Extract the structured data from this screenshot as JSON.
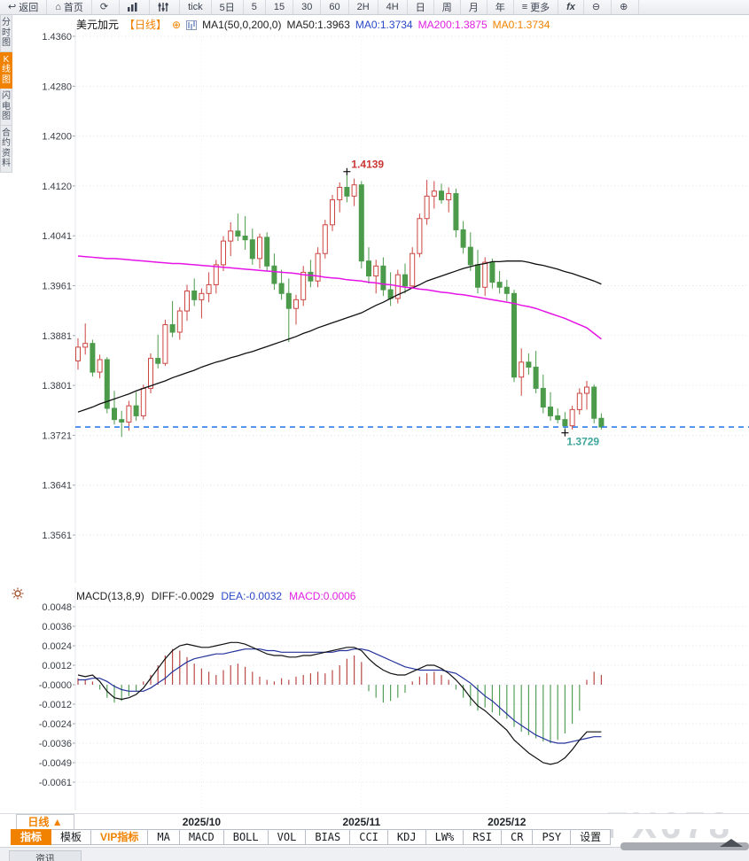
{
  "toolbar": {
    "items": [
      {
        "id": "back",
        "label": "返回",
        "icon": "back-arrow-icon",
        "glyph": "↩"
      },
      {
        "id": "home",
        "label": "首页",
        "icon": "home-icon",
        "glyph": "⌂"
      },
      {
        "id": "refresh",
        "label": "",
        "icon": "refresh-icon",
        "glyph": "⟳"
      },
      {
        "id": "chart-type",
        "label": "",
        "icon": "bar-chart-icon",
        "glyph": "svg-bars"
      },
      {
        "id": "settings",
        "label": "",
        "icon": "sliders-icon",
        "glyph": "svg-sliders"
      },
      {
        "id": "tick",
        "label": "tick"
      },
      {
        "id": "5d",
        "label": "5日"
      },
      {
        "id": "m5",
        "label": "5"
      },
      {
        "id": "m15",
        "label": "15"
      },
      {
        "id": "m30",
        "label": "30"
      },
      {
        "id": "m60",
        "label": "60"
      },
      {
        "id": "h2",
        "label": "2H"
      },
      {
        "id": "h4",
        "label": "4H"
      },
      {
        "id": "day",
        "label": "日"
      },
      {
        "id": "week",
        "label": "周"
      },
      {
        "id": "month",
        "label": "月"
      },
      {
        "id": "year",
        "label": "年"
      },
      {
        "id": "more",
        "label": "更多",
        "icon": "menu-icon",
        "glyph": "≡"
      },
      {
        "id": "fx",
        "label": "fx"
      },
      {
        "id": "zoom-out",
        "label": "",
        "icon": "zoom-out-icon",
        "glyph": "⊖"
      },
      {
        "id": "zoom-in",
        "label": "",
        "icon": "zoom-in-icon",
        "glyph": "⊕"
      }
    ]
  },
  "sidebar": {
    "tabs": [
      {
        "label": "分时图",
        "selected": false
      },
      {
        "label": "K线图",
        "selected": true
      },
      {
        "label": "闪电图",
        "selected": false
      },
      {
        "label": "合约资料",
        "selected": false
      }
    ]
  },
  "legend": {
    "symbol": "美元加元",
    "period": "【日线】",
    "add_glyph": "⊕",
    "ma_settings": "MA1(50,0,200,0)",
    "items": [
      {
        "text": "MA50:1.3963",
        "color": "#222222"
      },
      {
        "text": "MA0:1.3734",
        "color": "#2947c8"
      },
      {
        "text": "MA200:1.3875",
        "color": "#e020e0"
      },
      {
        "text": "MA0:1.3734",
        "color": "#f08200"
      }
    ]
  },
  "macd_legend": {
    "items": [
      {
        "text": "MACD(13,8,9)",
        "color": "#222222"
      },
      {
        "text": "DIFF:-0.0029",
        "color": "#222222"
      },
      {
        "text": "DEA:-0.0032",
        "color": "#2947c8"
      },
      {
        "text": "MACD:0.0006",
        "color": "#e020e0"
      }
    ]
  },
  "bottom": {
    "period_button": "日线 ▲",
    "indicator_tabs": [
      {
        "label": "指标",
        "style": "sel"
      },
      {
        "label": "模板",
        "style": ""
      },
      {
        "label": "VIP指标",
        "style": "vip"
      },
      {
        "label": "MA",
        "style": "mono"
      },
      {
        "label": "MACD",
        "style": "mono"
      },
      {
        "label": "BOLL",
        "style": "mono"
      },
      {
        "label": "VOL",
        "style": "mono"
      },
      {
        "label": "BIAS",
        "style": "mono"
      },
      {
        "label": "CCI",
        "style": "mono"
      },
      {
        "label": "KDJ",
        "style": "mono"
      },
      {
        "label": "LW%",
        "style": "mono"
      },
      {
        "label": "RSI",
        "style": "mono"
      },
      {
        "label": "CR",
        "style": "mono"
      },
      {
        "label": "PSY",
        "style": "mono"
      },
      {
        "label": "设置",
        "style": ""
      }
    ],
    "news_tab": "资讯",
    "watermark": "FX678"
  },
  "chart_data": {
    "type": "candlestick",
    "title": "美元加元 日线",
    "price_ticks": [
      1.436,
      1.428,
      1.42,
      1.412,
      1.4041,
      1.3961,
      1.3881,
      1.3801,
      1.3721,
      1.3641,
      1.3561
    ],
    "current_price": 1.3734,
    "high_annotation": {
      "index": 38,
      "value": "1.4139",
      "color": "#c93632"
    },
    "low_annotation": {
      "index": 68,
      "value": "1.3729",
      "color": "#3fa69b"
    },
    "months": [
      {
        "index": 18,
        "label": "2025/10"
      },
      {
        "index": 40,
        "label": "2025/11"
      },
      {
        "index": 60,
        "label": "2025/12"
      }
    ],
    "candles": [
      [
        1.384,
        1.3876,
        1.3826,
        1.3862
      ],
      [
        1.3862,
        1.39,
        1.385,
        1.3868
      ],
      [
        1.3868,
        1.3874,
        1.3815,
        1.3822
      ],
      [
        1.3822,
        1.385,
        1.3812,
        1.3842
      ],
      [
        1.3842,
        1.3846,
        1.3756,
        1.3764
      ],
      [
        1.3764,
        1.3792,
        1.3738,
        1.3746
      ],
      [
        1.3746,
        1.376,
        1.3718,
        1.3742
      ],
      [
        1.3742,
        1.3776,
        1.3728,
        1.3768
      ],
      [
        1.3768,
        1.379,
        1.3744,
        1.3752
      ],
      [
        1.3752,
        1.3802,
        1.3746,
        1.3796
      ],
      [
        1.3796,
        1.3852,
        1.3788,
        1.3844
      ],
      [
        1.3844,
        1.3882,
        1.3828,
        1.3836
      ],
      [
        1.3836,
        1.3906,
        1.3832,
        1.3898
      ],
      [
        1.3898,
        1.3936,
        1.3878,
        1.3886
      ],
      [
        1.3886,
        1.3926,
        1.3874,
        1.392
      ],
      [
        1.392,
        1.3962,
        1.3904,
        1.3952
      ],
      [
        1.3952,
        1.3972,
        1.3928,
        1.3938
      ],
      [
        1.3938,
        1.3956,
        1.3908,
        1.3948
      ],
      [
        1.3948,
        1.3982,
        1.3934,
        1.3962
      ],
      [
        1.3962,
        1.4002,
        1.3948,
        1.3994
      ],
      [
        1.3994,
        1.404,
        1.3984,
        1.4032
      ],
      [
        1.4032,
        1.4062,
        1.4008,
        1.4048
      ],
      [
        1.4048,
        1.4076,
        1.4032,
        1.404
      ],
      [
        1.404,
        1.4072,
        1.4018,
        1.4034
      ],
      [
        1.4034,
        1.4052,
        1.3994,
        1.4004
      ],
      [
        1.4004,
        1.4044,
        1.3988,
        1.4038
      ],
      [
        1.4038,
        1.4046,
        1.3984,
        1.3992
      ],
      [
        1.3992,
        1.4012,
        1.3954,
        1.3964
      ],
      [
        1.3964,
        1.3986,
        1.3938,
        1.3948
      ],
      [
        1.3948,
        1.3972,
        1.387,
        1.3924
      ],
      [
        1.3924,
        1.3946,
        1.3898,
        1.3938
      ],
      [
        1.3938,
        1.3992,
        1.3928,
        1.3982
      ],
      [
        1.3982,
        1.4002,
        1.3958,
        1.3968
      ],
      [
        1.3968,
        1.4022,
        1.3958,
        1.4012
      ],
      [
        1.4012,
        1.4066,
        1.4004,
        1.4058
      ],
      [
        1.4058,
        1.4106,
        1.4048,
        1.4098
      ],
      [
        1.4098,
        1.4126,
        1.4078,
        1.4118
      ],
      [
        1.4118,
        1.4139,
        1.4094,
        1.4104
      ],
      [
        1.4104,
        1.4132,
        1.4088,
        1.4122
      ],
      [
        1.4122,
        1.4128,
        1.3988,
        1.4
      ],
      [
        1.4,
        1.4022,
        1.3964,
        1.3976
      ],
      [
        1.3976,
        1.4002,
        1.3948,
        1.3992
      ],
      [
        1.3992,
        1.4006,
        1.3944,
        1.3954
      ],
      [
        1.3954,
        1.3982,
        1.3928,
        1.394
      ],
      [
        1.394,
        1.3986,
        1.3932,
        1.3978
      ],
      [
        1.3978,
        1.3996,
        1.3948,
        1.396
      ],
      [
        1.396,
        1.4022,
        1.3956,
        1.4012
      ],
      [
        1.4012,
        1.4076,
        1.4006,
        1.4068
      ],
      [
        1.4068,
        1.413,
        1.4058,
        1.4104
      ],
      [
        1.4104,
        1.4128,
        1.4084,
        1.4112
      ],
      [
        1.4112,
        1.4124,
        1.4092,
        1.4098
      ],
      [
        1.4098,
        1.4118,
        1.4078,
        1.4108
      ],
      [
        1.4108,
        1.4116,
        1.4038,
        1.405
      ],
      [
        1.405,
        1.4064,
        1.4012,
        1.4022
      ],
      [
        1.4022,
        1.4046,
        1.3984,
        1.3994
      ],
      [
        1.3994,
        1.4018,
        1.3948,
        1.3958
      ],
      [
        1.3958,
        1.4006,
        1.3944,
        1.3998
      ],
      [
        1.3998,
        1.4004,
        1.3956,
        1.3966
      ],
      [
        1.3966,
        1.3984,
        1.3948,
        1.3958
      ],
      [
        1.3958,
        1.397,
        1.3936,
        1.3948
      ],
      [
        1.3948,
        1.3954,
        1.3806,
        1.3814
      ],
      [
        1.3814,
        1.386,
        1.3784,
        1.3838
      ],
      [
        1.3838,
        1.3852,
        1.3818,
        1.383
      ],
      [
        1.383,
        1.3856,
        1.3788,
        1.3796
      ],
      [
        1.3796,
        1.3818,
        1.3756,
        1.3766
      ],
      [
        1.3766,
        1.379,
        1.3744,
        1.3752
      ],
      [
        1.3752,
        1.3764,
        1.374,
        1.3746
      ],
      [
        1.3746,
        1.3758,
        1.3729,
        1.3736
      ],
      [
        1.3736,
        1.3768,
        1.373,
        1.3762
      ],
      [
        1.3762,
        1.3796,
        1.3754,
        1.3788
      ],
      [
        1.3788,
        1.3808,
        1.3762,
        1.3798
      ],
      [
        1.3798,
        1.3802,
        1.374,
        1.3748
      ],
      [
        1.3748,
        1.3756,
        1.373,
        1.3734
      ]
    ],
    "ma50": [
      1.3758,
      1.3762,
      1.3766,
      1.3771,
      1.3775,
      1.3779,
      1.3783,
      1.3787,
      1.3792,
      1.3796,
      1.38,
      1.3804,
      1.3808,
      1.3813,
      1.3817,
      1.3821,
      1.3825,
      1.383,
      1.3834,
      1.3838,
      1.3841,
      1.3845,
      1.3848,
      1.3852,
      1.3855,
      1.3859,
      1.3863,
      1.3867,
      1.3871,
      1.3875,
      1.3879,
      1.3884,
      1.3888,
      1.3893,
      1.3897,
      1.3901,
      1.3905,
      1.3909,
      1.3913,
      1.3917,
      1.3923,
      1.3929,
      1.3934,
      1.394,
      1.3946,
      1.3951,
      1.3957,
      1.3962,
      1.3968,
      1.3972,
      1.3976,
      1.398,
      1.3984,
      1.3988,
      1.3991,
      1.3994,
      1.3996,
      1.3999,
      1.3999,
      1.4,
      1.4,
      1.4,
      1.3998,
      1.3995,
      1.3993,
      1.399,
      1.3987,
      1.3983,
      1.398,
      1.3976,
      1.3972,
      1.3968,
      1.3963
    ],
    "ma200": [
      1.4008,
      1.4007,
      1.4006,
      1.4005,
      1.4004,
      1.4004,
      1.4003,
      1.4002,
      1.4001,
      1.4,
      1.3999,
      1.3998,
      1.3997,
      1.3996,
      1.3996,
      1.3995,
      1.3994,
      1.3993,
      1.3992,
      1.3991,
      1.399,
      1.3989,
      1.3988,
      1.3987,
      1.3986,
      1.3985,
      1.3984,
      1.3983,
      1.3982,
      1.3981,
      1.398,
      1.3978,
      1.3977,
      1.3976,
      1.3974,
      1.3973,
      1.3972,
      1.397,
      1.3969,
      1.3968,
      1.3966,
      1.3965,
      1.3963,
      1.3962,
      1.396,
      1.3958,
      1.3957,
      1.3955,
      1.3954,
      1.3952,
      1.395,
      1.3949,
      1.3947,
      1.3946,
      1.3944,
      1.3942,
      1.394,
      1.3938,
      1.3936,
      1.3934,
      1.3932,
      1.3929,
      1.3927,
      1.3924,
      1.392,
      1.3916,
      1.3912,
      1.3908,
      1.3903,
      1.3898,
      1.3893,
      1.3884,
      1.3875
    ],
    "macd": {
      "params": "13,8,9",
      "ticks": [
        0.0048,
        0.0036,
        0.0024,
        0.0012,
        -0.0,
        -0.0012,
        -0.0024,
        -0.0036,
        -0.0049,
        -0.0061
      ],
      "hist": [
        0.0004,
        0.0003,
        0.0002,
        -0.0003,
        -0.0008,
        -0.0011,
        -0.001,
        -0.0007,
        -0.0004,
        0.0002,
        0.0006,
        0.0012,
        0.0018,
        0.0022,
        0.0021,
        0.0017,
        0.0013,
        0.001,
        0.0008,
        0.0006,
        0.0009,
        0.0012,
        0.0013,
        0.0011,
        0.0008,
        0.0005,
        0.0003,
        0.0002,
        0.0004,
        0.0003,
        0.0005,
        0.0006,
        0.0007,
        0.0008,
        0.0007,
        0.0009,
        0.0012,
        0.0016,
        0.0018,
        0.0014,
        -0.0004,
        -0.0008,
        -0.0011,
        -0.001,
        -0.0008,
        -0.0005,
        0.0002,
        0.0005,
        0.0007,
        0.0008,
        0.0006,
        0.0003,
        -0.0003,
        -0.0008,
        -0.0013,
        -0.0016,
        -0.0014,
        -0.0017,
        -0.0019,
        -0.0021,
        -0.0026,
        -0.0029,
        -0.0031,
        -0.0033,
        -0.0035,
        -0.0036,
        -0.0034,
        -0.003,
        -0.0024,
        -0.0016,
        0.0003,
        0.0008,
        0.0006
      ],
      "diff": [
        0.0006,
        0.0005,
        0.0006,
        0.0002,
        -0.0004,
        -0.0008,
        -0.0009,
        -0.0008,
        -0.0006,
        -0.0002,
        0.0004,
        0.001,
        0.0016,
        0.0021,
        0.0024,
        0.0025,
        0.0024,
        0.0023,
        0.0023,
        0.0024,
        0.0025,
        0.0026,
        0.0026,
        0.0025,
        0.0023,
        0.0021,
        0.0019,
        0.0018,
        0.0018,
        0.0017,
        0.0017,
        0.0018,
        0.0018,
        0.0019,
        0.002,
        0.0021,
        0.0022,
        0.0023,
        0.0023,
        0.0021,
        0.0016,
        0.0012,
        0.0009,
        0.0007,
        0.0006,
        0.0006,
        0.0008,
        0.001,
        0.0012,
        0.0012,
        0.001,
        0.0007,
        0.0003,
        -0.0002,
        -0.0008,
        -0.0013,
        -0.0016,
        -0.002,
        -0.0024,
        -0.0028,
        -0.0034,
        -0.0038,
        -0.0042,
        -0.0045,
        -0.0048,
        -0.0049,
        -0.0048,
        -0.0045,
        -0.004,
        -0.0034,
        -0.0029,
        -0.0029,
        -0.0029
      ],
      "dea": [
        0.0003,
        0.0003,
        0.0004,
        0.0004,
        0.0002,
        -0.0001,
        -0.0003,
        -0.0004,
        -0.0004,
        -0.0004,
        -0.0002,
        0.0001,
        0.0004,
        0.0008,
        0.0011,
        0.0014,
        0.0016,
        0.0017,
        0.0018,
        0.0019,
        0.0019,
        0.002,
        0.0021,
        0.0022,
        0.0022,
        0.0022,
        0.0021,
        0.0021,
        0.002,
        0.002,
        0.002,
        0.002,
        0.002,
        0.002,
        0.002,
        0.002,
        0.0021,
        0.0021,
        0.0022,
        0.0022,
        0.0021,
        0.0019,
        0.0017,
        0.0015,
        0.0013,
        0.0011,
        0.001,
        0.0009,
        0.0009,
        0.0009,
        0.0009,
        0.0008,
        0.0007,
        0.0004,
        0.0001,
        -0.0003,
        -0.0007,
        -0.001,
        -0.0014,
        -0.0018,
        -0.0022,
        -0.0025,
        -0.0028,
        -0.0031,
        -0.0033,
        -0.0035,
        -0.0036,
        -0.0036,
        -0.0035,
        -0.0034,
        -0.0033,
        -0.0032,
        -0.0032
      ]
    },
    "colors": {
      "up": "#cc4540",
      "down": "#4b9b4b",
      "ma50": "#111111",
      "ma200": "#e613e6",
      "current_line": "#2f7ded",
      "diff": "#111111",
      "dea": "#23339b",
      "hist_pos": "#b94a48",
      "hist_neg": "#55a05a",
      "grid": "#dfe3e9",
      "axis_text": "#3a3f47"
    }
  }
}
